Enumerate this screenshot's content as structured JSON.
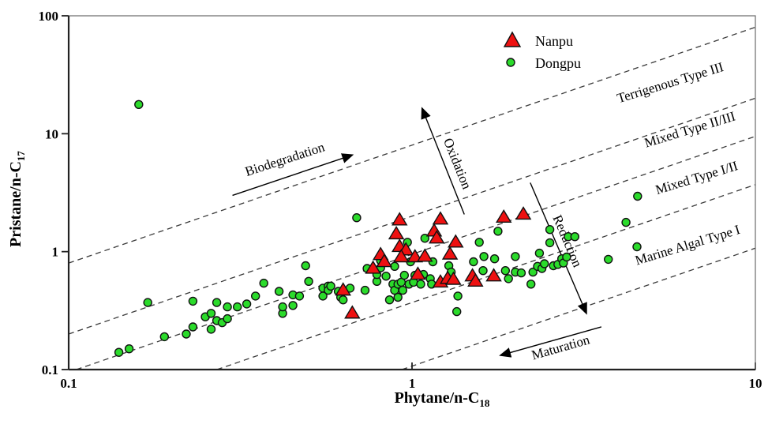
{
  "chart_data": {
    "type": "scatter",
    "title": "",
    "xlabel": "Phytane/n-C18",
    "ylabel": "Pristane/n-C17",
    "xlabel_main": "Phytane/n-C",
    "xlabel_sub": "18",
    "ylabel_main": "Pristane/n-C",
    "ylabel_sub": "17",
    "x_axis": {
      "scale": "log",
      "min": 0.1,
      "max": 10,
      "ticks": [
        "0.1",
        "1",
        "10"
      ]
    },
    "y_axis": {
      "scale": "log",
      "min": 0.1,
      "max": 100,
      "ticks": [
        "0.1",
        "1",
        "10",
        "100"
      ]
    },
    "grid": false,
    "legend_position": "top-center",
    "colors": {
      "nanpu": "#ee1111",
      "dongpu": "#2bdb2b",
      "marker_stroke": "#111111",
      "dashed_line": "#3a3a3a"
    },
    "series": [
      {
        "name": "Nanpu",
        "marker": "triangle",
        "color": "#ee1111",
        "points": [
          [
            0.92,
            1.85
          ],
          [
            0.9,
            1.41
          ],
          [
            1.21,
            1.88
          ],
          [
            1.16,
            1.49
          ],
          [
            1.18,
            1.3
          ],
          [
            0.92,
            1.1
          ],
          [
            0.96,
            1.03
          ],
          [
            0.93,
            0.9
          ],
          [
            1.02,
            0.9
          ],
          [
            1.09,
            0.91
          ],
          [
            1.34,
            1.2
          ],
          [
            1.29,
            0.95
          ],
          [
            1.85,
            1.95
          ],
          [
            2.11,
            2.07
          ],
          [
            0.81,
            0.94
          ],
          [
            0.83,
            0.82
          ],
          [
            0.77,
            0.72
          ],
          [
            0.63,
            0.47
          ],
          [
            0.67,
            0.3
          ],
          [
            1.04,
            0.64
          ],
          [
            1.21,
            0.55
          ],
          [
            1.27,
            0.59
          ],
          [
            1.32,
            0.58
          ],
          [
            1.5,
            0.62
          ],
          [
            1.53,
            0.56
          ],
          [
            1.73,
            0.62
          ]
        ]
      },
      {
        "name": "Dongpu",
        "marker": "circle",
        "color": "#2bdb2b",
        "points": [
          [
            0.14,
            0.14
          ],
          [
            0.15,
            0.15
          ],
          [
            0.19,
            0.19
          ],
          [
            0.22,
            0.2
          ],
          [
            0.23,
            0.23
          ],
          [
            0.25,
            0.28
          ],
          [
            0.26,
            0.3
          ],
          [
            0.27,
            0.26
          ],
          [
            0.28,
            0.25
          ],
          [
            0.29,
            0.27
          ],
          [
            0.26,
            0.22
          ],
          [
            0.17,
            0.37
          ],
          [
            0.23,
            0.38
          ],
          [
            0.27,
            0.37
          ],
          [
            0.29,
            0.34
          ],
          [
            0.31,
            0.34
          ],
          [
            0.33,
            0.36
          ],
          [
            0.35,
            0.42
          ],
          [
            0.37,
            0.54
          ],
          [
            0.41,
            0.46
          ],
          [
            0.42,
            0.3
          ],
          [
            0.42,
            0.34
          ],
          [
            0.45,
            0.43
          ],
          [
            0.45,
            0.35
          ],
          [
            0.47,
            0.42
          ],
          [
            0.49,
            0.76
          ],
          [
            0.5,
            0.56
          ],
          [
            0.55,
            0.49
          ],
          [
            0.57,
            0.51
          ],
          [
            0.57,
            0.47
          ],
          [
            0.55,
            0.42
          ],
          [
            0.58,
            0.51
          ],
          [
            0.61,
            0.46
          ],
          [
            0.62,
            0.41
          ],
          [
            0.63,
            0.39
          ],
          [
            0.66,
            0.49
          ],
          [
            0.69,
            1.94
          ],
          [
            0.73,
            0.47
          ],
          [
            0.74,
            0.72
          ],
          [
            0.79,
            0.56
          ],
          [
            0.79,
            0.64
          ],
          [
            0.81,
            0.84
          ],
          [
            0.81,
            0.73
          ],
          [
            0.84,
            0.62
          ],
          [
            0.86,
            0.39
          ],
          [
            0.88,
            0.53
          ],
          [
            0.89,
            0.75
          ],
          [
            0.89,
            0.47
          ],
          [
            0.91,
            0.53
          ],
          [
            0.91,
            0.41
          ],
          [
            0.93,
            0.55
          ],
          [
            0.94,
            0.47
          ],
          [
            0.95,
            0.63
          ],
          [
            0.97,
            1.2
          ],
          [
            0.98,
            0.53
          ],
          [
            0.99,
            0.82
          ],
          [
            1.01,
            0.55
          ],
          [
            1.02,
            0.63
          ],
          [
            1.06,
            0.53
          ],
          [
            1.08,
            0.64
          ],
          [
            1.09,
            1.3
          ],
          [
            1.13,
            0.59
          ],
          [
            1.14,
            0.53
          ],
          [
            1.15,
            0.82
          ],
          [
            1.28,
            0.76
          ],
          [
            1.3,
            0.67
          ],
          [
            1.36,
            0.42
          ],
          [
            1.35,
            0.31
          ],
          [
            1.51,
            0.82
          ],
          [
            1.57,
            1.2
          ],
          [
            1.61,
            0.69
          ],
          [
            1.62,
            0.91
          ],
          [
            1.74,
            0.87
          ],
          [
            1.78,
            1.49
          ],
          [
            1.87,
            0.69
          ],
          [
            1.91,
            0.59
          ],
          [
            2.0,
            0.91
          ],
          [
            2.0,
            0.67
          ],
          [
            2.08,
            0.66
          ],
          [
            2.22,
            0.53
          ],
          [
            2.25,
            0.67
          ],
          [
            2.32,
            0.75
          ],
          [
            2.35,
            0.97
          ],
          [
            2.39,
            0.72
          ],
          [
            2.43,
            0.79
          ],
          [
            2.52,
            1.54
          ],
          [
            2.52,
            1.19
          ],
          [
            2.58,
            0.76
          ],
          [
            2.66,
            0.78
          ],
          [
            2.73,
            0.87
          ],
          [
            2.76,
            0.8
          ],
          [
            2.82,
            0.9
          ],
          [
            2.85,
            1.34
          ],
          [
            2.98,
            1.34
          ],
          [
            3.73,
            0.86
          ],
          [
            4.2,
            1.77
          ],
          [
            4.52,
            1.1
          ],
          [
            4.54,
            2.95
          ],
          [
            0.16,
            17.7
          ]
        ]
      }
    ],
    "zone_lines": {
      "style": "dashed",
      "slope_loglog": 1,
      "k_values": [
        8.0,
        2.0,
        0.95,
        0.37,
        0.107
      ]
    },
    "zone_labels": [
      {
        "label": "Terrigenous Type III",
        "x": 5.7,
        "y": 25,
        "rotation": -17
      },
      {
        "label": "Mixed Type II/III",
        "x": 6.5,
        "y": 10,
        "rotation": -17
      },
      {
        "label": "Mixed Type I/II",
        "x": 6.8,
        "y": 3.9,
        "rotation": -17
      },
      {
        "label": "Marine Algal Type I",
        "x": 6.4,
        "y": 1.05,
        "rotation": -17
      }
    ],
    "arrows": [
      {
        "label": "Biodegradation",
        "from": [
          0.3,
          3.0
        ],
        "to": [
          0.67,
          6.6
        ],
        "label_at": [
          0.43,
          5.6
        ],
        "label_rotation": -18
      },
      {
        "label": "Oxidation",
        "from": [
          1.42,
          2.07
        ],
        "to": [
          1.07,
          16.4
        ],
        "label_at": [
          1.32,
          5.4
        ],
        "label_rotation": 68
      },
      {
        "label": "Reduction",
        "from": [
          2.21,
          3.84
        ],
        "to": [
          3.22,
          0.3
        ],
        "label_at": [
          2.76,
          1.19
        ],
        "label_rotation": 67
      },
      {
        "label": "Maturation",
        "from": [
          3.56,
          0.23
        ],
        "to": [
          1.81,
          0.132
        ],
        "label_at": [
          2.73,
          0.142
        ],
        "label_rotation": -16
      }
    ]
  },
  "legend": {
    "items": [
      {
        "label": "Nanpu",
        "marker": "triangle",
        "color": "#ee1111"
      },
      {
        "label": "Dongpu",
        "marker": "circle",
        "color": "#2bdb2b"
      }
    ]
  }
}
